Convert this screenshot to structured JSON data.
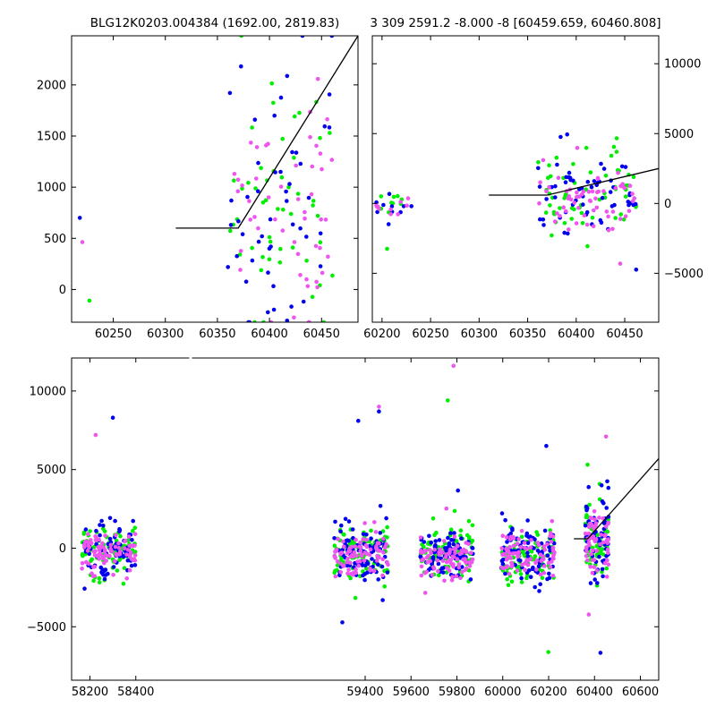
{
  "chart_data": [
    {
      "id": "top-left",
      "type": "scatter",
      "title": "BLG12K0203.004384 (1692.00, 2819.83)",
      "xlim": [
        60210,
        60485
      ],
      "ylim": [
        -320,
        2480
      ],
      "x_ticks": [
        60250,
        60300,
        60350,
        60400,
        60450
      ],
      "y_ticks": [
        0,
        500,
        1000,
        1500,
        2000
      ],
      "y_axis_side": "left",
      "grid": false,
      "series_colors": [
        "#00ee00",
        "#0000ee",
        "#ee55ee"
      ],
      "clusters": [
        {
          "x": [
            60212,
            60228
          ],
          "y_mean": 250,
          "y_sd": 300,
          "n": 4,
          "y_range": [
            -320,
            700
          ]
        },
        {
          "x": [
            60360,
            60462
          ],
          "y_mean": 800,
          "y_sd": 650,
          "n": 150,
          "y_range": [
            -320,
            2480
          ]
        }
      ],
      "model": {
        "x": [
          60310,
          60370,
          60485
        ],
        "y": [
          600,
          600,
          2480
        ]
      }
    },
    {
      "id": "top-right",
      "type": "scatter",
      "title": "3 309 2591.2 -8.000 -8 [60459.659, 60460.808]",
      "xlim": [
        60190,
        60485
      ],
      "ylim": [
        -8500,
        12000
      ],
      "x_ticks": [
        60200,
        60250,
        60300,
        60350,
        60400,
        60450
      ],
      "y_ticks": [
        -5000,
        0,
        5000,
        10000
      ],
      "y_axis_side": "right",
      "grid": false,
      "series_colors": [
        "#00ee00",
        "#0000ee",
        "#ee55ee"
      ],
      "clusters": [
        {
          "x": [
            60190,
            60232
          ],
          "y_mean": -300,
          "y_sd": 900,
          "n": 30,
          "y_range": [
            -8500,
            12000
          ]
        },
        {
          "x": [
            60360,
            60462
          ],
          "y_mean": 500,
          "y_sd": 1300,
          "n": 180,
          "y_range": [
            -8500,
            12000
          ]
        }
      ],
      "model": {
        "x": [
          60310,
          60370,
          60485
        ],
        "y": [
          600,
          600,
          2500
        ]
      }
    },
    {
      "id": "bottom",
      "type": "scatter",
      "title": "",
      "xlim": [
        58120,
        60680
      ],
      "ylim": [
        -8400,
        12100
      ],
      "x_ticks": [
        58200,
        58400,
        59400,
        59600,
        59800,
        60000,
        60200,
        60400,
        60600
      ],
      "y_ticks": [
        -5000,
        0,
        5000,
        10000
      ],
      "y_axis_side": "left",
      "grid": false,
      "series_colors": [
        "#00ee00",
        "#0000ee",
        "#ee55ee"
      ],
      "clusters": [
        {
          "x": [
            58165,
            58400
          ],
          "y_mean": -200,
          "y_sd": 700,
          "n": 260,
          "y_range": [
            -8400,
            12100
          ]
        },
        {
          "x": [
            59265,
            59500
          ],
          "y_mean": -400,
          "y_sd": 800,
          "n": 260,
          "y_range": [
            -8400,
            12100
          ]
        },
        {
          "x": [
            59640,
            59870
          ],
          "y_mean": -500,
          "y_sd": 800,
          "n": 260,
          "y_range": [
            -8400,
            12100
          ]
        },
        {
          "x": [
            59990,
            60225
          ],
          "y_mean": -400,
          "y_sd": 800,
          "n": 260,
          "y_range": [
            -8400,
            12100
          ]
        },
        {
          "x": [
            60360,
            60462
          ],
          "y_mean": 500,
          "y_sd": 1300,
          "n": 180,
          "y_range": [
            -8400,
            12100
          ]
        }
      ],
      "outliers": [
        {
          "x": 58300,
          "y": 8300,
          "series": 1
        },
        {
          "x": 58225,
          "y": 7200,
          "series": 2
        },
        {
          "x": 59370,
          "y": 8100,
          "series": 1
        },
        {
          "x": 59460,
          "y": 9000,
          "series": 2
        },
        {
          "x": 59460,
          "y": 8700,
          "series": 1
        },
        {
          "x": 59785,
          "y": 11600,
          "series": 2
        },
        {
          "x": 59760,
          "y": 9400,
          "series": 0
        },
        {
          "x": 60450,
          "y": 7100,
          "series": 2
        },
        {
          "x": 60190,
          "y": 6500,
          "series": 1
        }
      ],
      "model": {
        "x": [
          60310,
          60370,
          60680
        ],
        "y": [
          600,
          600,
          5700
        ]
      }
    }
  ]
}
